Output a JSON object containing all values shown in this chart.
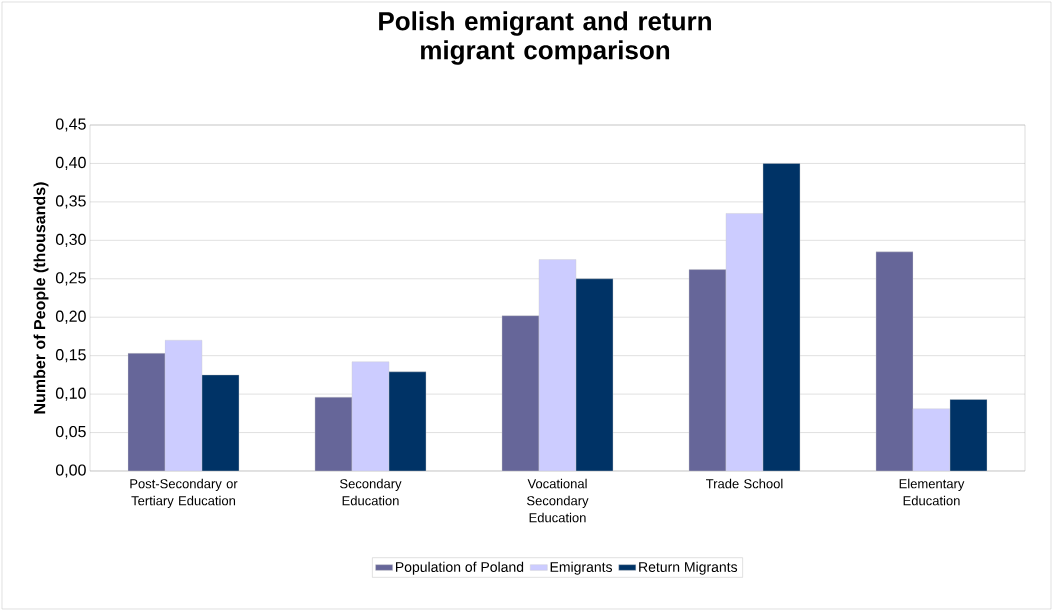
{
  "chart_data": {
    "type": "bar",
    "title": "Polish emigrant and return migrant comparison",
    "ylabel": "Number of People (thousands)",
    "categories": [
      "Post-Secondary or Tertiary Education",
      "Secondary Education",
      "Vocational Secondary Education",
      "Trade School",
      "Elementary Education"
    ],
    "series": [
      {
        "name": "Population of Poland",
        "color": "#666699",
        "values": [
          0.153,
          0.096,
          0.202,
          0.262,
          0.285
        ]
      },
      {
        "name": "Emigrants",
        "color": "#ccccff",
        "values": [
          0.17,
          0.142,
          0.275,
          0.335,
          0.081
        ]
      },
      {
        "name": "Return Migrants",
        "color": "#003366",
        "values": [
          0.125,
          0.129,
          0.25,
          0.4,
          0.093
        ]
      }
    ],
    "ylim": [
      0,
      0.45
    ],
    "yticks": [
      {
        "value": 0,
        "label": "0,00"
      },
      {
        "value": 0.05,
        "label": "0,05"
      },
      {
        "value": 0.1,
        "label": "0,10"
      },
      {
        "value": 0.15,
        "label": "0,15"
      },
      {
        "value": 0.2,
        "label": "0,20"
      },
      {
        "value": 0.25,
        "label": "0,25"
      },
      {
        "value": 0.3,
        "label": "0,30"
      },
      {
        "value": 0.35,
        "label": "0,35"
      },
      {
        "value": 0.4,
        "label": "0,40"
      },
      {
        "value": 0.45,
        "label": "0,45"
      }
    ],
    "grid": "y",
    "legend": "bottom"
  }
}
